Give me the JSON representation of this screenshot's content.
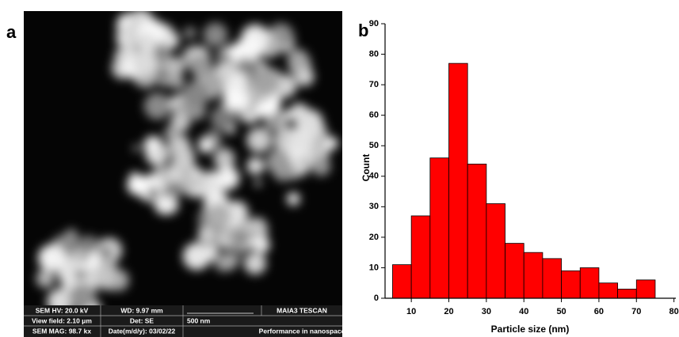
{
  "panel_labels": [
    "a",
    "b"
  ],
  "sem_image": {
    "info_bar": [
      [
        "SEM HV: 20.0 kV",
        "WD: 9.97 mm",
        "MAIA3 TESCAN"
      ],
      [
        "View field: 2.10 μm",
        "Det: SE",
        "500 nm"
      ],
      [
        "SEM MAG: 98.7 kx",
        "Date(m/d/y): 03/02/22",
        "Performance in nanospace"
      ]
    ]
  },
  "chart_data": {
    "type": "histogram",
    "x_label": "Particle size (nm)",
    "y_label": "Count",
    "bins": [
      5,
      10,
      15,
      20,
      25,
      30,
      35,
      40,
      45,
      50,
      55,
      60,
      65,
      70,
      75
    ],
    "values": [
      11,
      27,
      46,
      77,
      44,
      31,
      18,
      15,
      13,
      9,
      10,
      5,
      3,
      6
    ],
    "color": "#ff0000",
    "xlim": [
      3,
      80.5
    ],
    "xticks": [
      10,
      20,
      30,
      40,
      50,
      60,
      70,
      80
    ],
    "ylim": [
      0,
      90
    ],
    "yticks": [
      0,
      10,
      20,
      30,
      40,
      50,
      60,
      70,
      80,
      90
    ]
  }
}
